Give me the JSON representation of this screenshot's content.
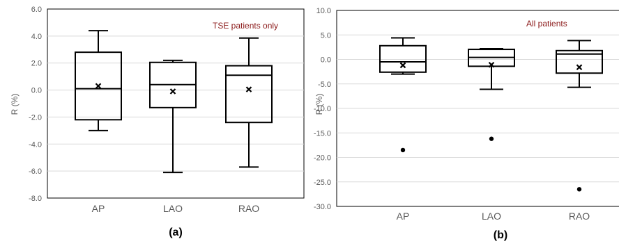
{
  "chart_data": [
    {
      "type": "box",
      "panel_label": "(a)",
      "annotation": "TSE patients only",
      "ylabel": "R (%)",
      "ylim": [
        -8.0,
        6.0
      ],
      "yticks": [
        "6.0",
        "4.0",
        "2.0",
        "0.0",
        "-2.0",
        "-4.0",
        "-6.0",
        "-8.0"
      ],
      "ytick_values": [
        6.0,
        4.0,
        2.0,
        0.0,
        -2.0,
        -4.0,
        -6.0,
        -8.0
      ],
      "grid": true,
      "categories": [
        "AP",
        "LAO",
        "RAO"
      ],
      "boxes": [
        {
          "min": -3.0,
          "q1": -2.2,
          "median": 0.1,
          "q3": 2.8,
          "max": 4.4,
          "mean": 0.3,
          "outliers": []
        },
        {
          "min": -6.1,
          "q1": -1.3,
          "median": 0.4,
          "q3": 2.05,
          "max": 2.2,
          "mean": -0.1,
          "outliers": []
        },
        {
          "min": -5.7,
          "q1": -2.4,
          "median": 1.1,
          "q3": 1.8,
          "max": 3.85,
          "mean": 0.05,
          "outliers": []
        }
      ]
    },
    {
      "type": "box",
      "panel_label": "(b)",
      "annotation": "All patients",
      "ylabel": "R (%)",
      "ylim": [
        -30.0,
        10.0
      ],
      "yticks": [
        "10.0",
        "5.0",
        "0.0",
        "-5.0",
        "-10.0",
        "-15.0",
        "-20.0",
        "-25.0",
        "-30.0"
      ],
      "ytick_values": [
        10.0,
        5.0,
        0.0,
        -5.0,
        -10.0,
        -15.0,
        -20.0,
        -25.0,
        -30.0
      ],
      "grid": true,
      "categories": [
        "AP",
        "LAO",
        "RAO"
      ],
      "boxes": [
        {
          "min": -3.0,
          "q1": -2.6,
          "median": -0.5,
          "q3": 2.8,
          "max": 4.4,
          "mean": -1.2,
          "outliers": [
            -18.5
          ]
        },
        {
          "min": -6.1,
          "q1": -1.4,
          "median": 0.4,
          "q3": 2.05,
          "max": 2.2,
          "mean": -1.1,
          "outliers": [
            -16.2
          ]
        },
        {
          "min": -5.7,
          "q1": -2.8,
          "median": 1.1,
          "q3": 1.8,
          "max": 3.85,
          "mean": -1.6,
          "outliers": [
            -26.5
          ]
        }
      ]
    }
  ],
  "colors": {
    "annotation": "#8b1a1a",
    "box": "#000000",
    "grid": "#d9d9d9",
    "axis_text": "#595959"
  }
}
